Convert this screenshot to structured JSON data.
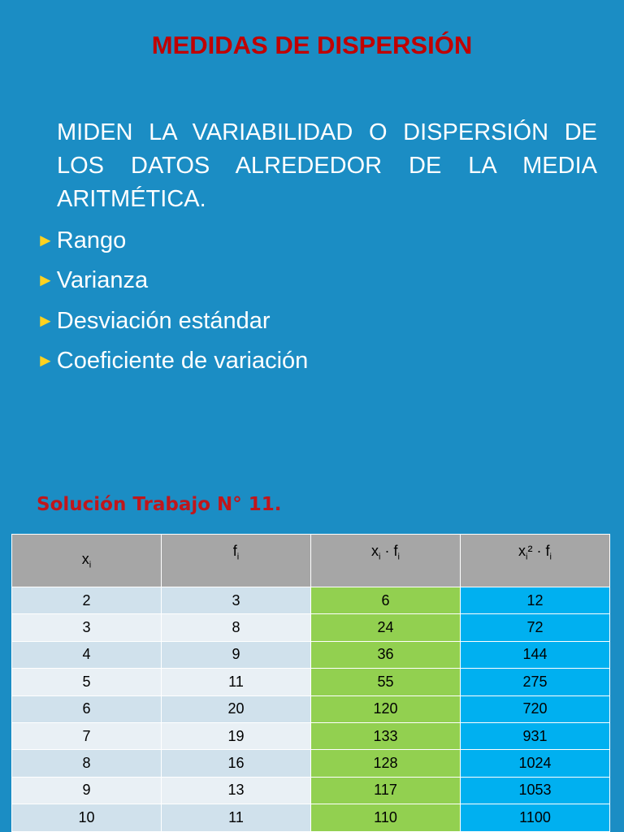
{
  "title": "MEDIDAS DE DISPERSIÓN",
  "intro": "MIDEN LA VARIABILIDAD O DISPERSIÓN DE LOS DATOS ALREDEDOR DE LA MEDIA ARITMÉTICA.",
  "bullets": [
    "Rango",
    "Varianza",
    "Desviación estándar",
    "Coeficiente de variación"
  ],
  "subtitle": "Solución Trabajo N° 11.",
  "table": {
    "header": [
      [
        [
          "x",
          "i"
        ]
      ],
      [
        [
          "f",
          "i"
        ]
      ],
      [
        [
          "x",
          "i"
        ],
        [
          " · f",
          "i"
        ]
      ],
      [
        [
          "x",
          "i"
        ],
        [
          "² · f",
          "i"
        ]
      ]
    ],
    "rows": [
      [
        2,
        3,
        6,
        12
      ],
      [
        3,
        8,
        24,
        72
      ],
      [
        4,
        9,
        36,
        144
      ],
      [
        5,
        11,
        55,
        275
      ],
      [
        6,
        20,
        120,
        720
      ],
      [
        7,
        19,
        133,
        931
      ],
      [
        8,
        16,
        128,
        1024
      ],
      [
        9,
        13,
        117,
        1053
      ],
      [
        10,
        11,
        110,
        1100
      ]
    ]
  }
}
